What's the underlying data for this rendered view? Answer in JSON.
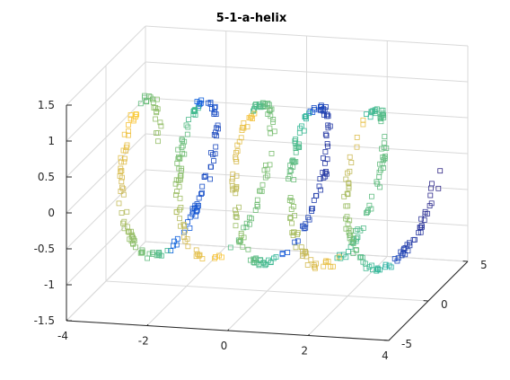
{
  "chart_data": {
    "type": "scatter",
    "title": "5-1-a-helix",
    "marker": "square",
    "colormap": "parula",
    "grid": true,
    "xlim": [
      -4,
      4
    ],
    "ylim": [
      -5,
      5
    ],
    "zlim": [
      -1.5,
      1.5
    ],
    "x_ticks": [
      "-4",
      "-2",
      "0",
      "2",
      "4"
    ],
    "y_ticks": [
      "-5",
      "0",
      "5"
    ],
    "z_ticks": [
      "-1.5",
      "-1",
      "-0.5",
      "0",
      "0.5",
      "1",
      "1.5"
    ],
    "x_tick_values": [
      -4,
      -2,
      0,
      2,
      4
    ],
    "y_tick_values": [
      -5,
      0,
      5
    ],
    "z_tick_values": [
      -1.5,
      -1,
      -0.5,
      0,
      0.5,
      1,
      1.5
    ],
    "series": [
      {
        "helix_turns": 5,
        "x_center_range": [
          -3.5,
          3.5
        ],
        "radius": 1.0,
        "points_approx": 600
      }
    ]
  }
}
